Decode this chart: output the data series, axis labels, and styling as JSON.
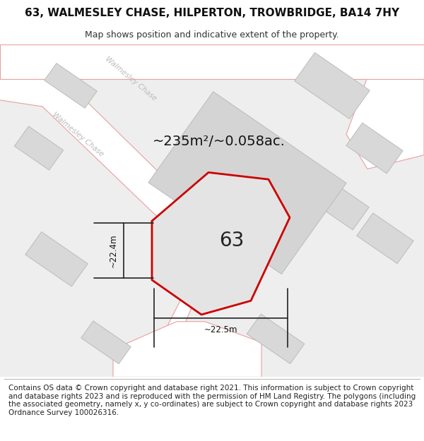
{
  "title": "63, WALMESLEY CHASE, HILPERTON, TROWBRIDGE, BA14 7HY",
  "subtitle": "Map shows position and indicative extent of the property.",
  "footer": "Contains OS data © Crown copyright and database right 2021. This information is subject to Crown copyright and database rights 2023 and is reproduced with the permission of HM Land Registry. The polygons (including the associated geometry, namely x, y co-ordinates) are subject to Crown copyright and database rights 2023 Ordnance Survey 100026316.",
  "area_label": "~235m²/~0.058ac.",
  "plot_number": "63",
  "dim_vertical": "~22.4m",
  "dim_horizontal": "~22.5m",
  "bg_color": "#eeeeee",
  "road_fill": "#ffffff",
  "building_fill": "#d8d8d8",
  "building_stroke": "#bbbbbb",
  "road_stroke": "#e8a0a0",
  "plot_stroke": "#cc0000",
  "plot_fill": "#e4e4e4",
  "dim_color": "#222222",
  "title_fontsize": 11,
  "subtitle_fontsize": 9,
  "footer_fontsize": 7.5,
  "road_label_color": "#bbbbbb"
}
